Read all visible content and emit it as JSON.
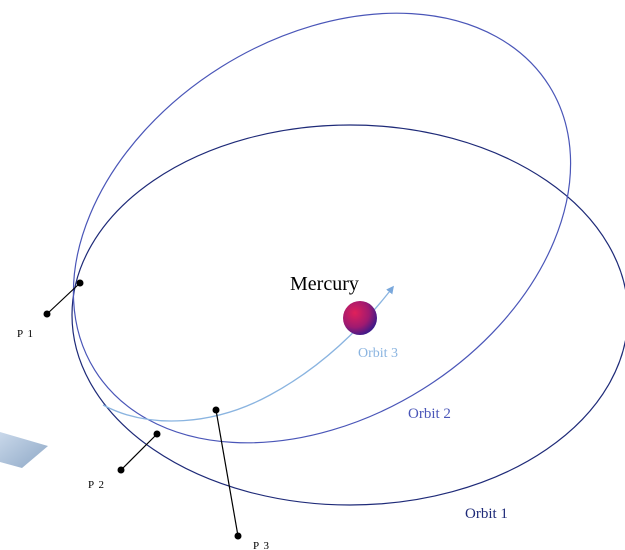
{
  "labels": {
    "planet": "Mercury",
    "orbit1": "Orbit 1",
    "orbit2": "Orbit 2",
    "orbit3": "Orbit 3"
  },
  "points": [
    "P 1",
    "P 2",
    "P 3"
  ]
}
